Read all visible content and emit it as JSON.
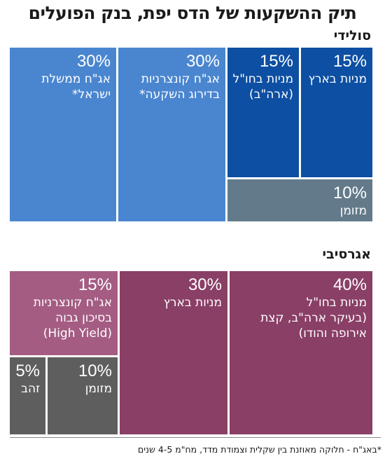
{
  "title": "תיק ההשקעות של הדס יפת, בנק הפועלים",
  "footnote": "*באג\"ח - חלוקה מאוזנת בין שקלית וצמודת מדד, מח\"מ 4-5 שנים",
  "colors": {
    "solid_light": "#4a86d0",
    "solid_dark": "#0d4fa3",
    "solid_cash": "#637a8a",
    "aggr_light": "#a45c82",
    "aggr_dark": "#8a3f66",
    "aggr_gray": "#5e5e5e"
  },
  "chart_data": [
    {
      "type": "treemap",
      "name": "סולידי",
      "items": [
        {
          "value": 30,
          "pct_label": "30%",
          "label": "אג\"ח ממשלת\nישראל*"
        },
        {
          "value": 30,
          "pct_label": "30%",
          "label": "אג\"ח קונצרניות\nבדירוג השקעה*"
        },
        {
          "value": 15,
          "pct_label": "15%",
          "label": "מניות בחו\"ל\n(ארה\"ב)"
        },
        {
          "value": 15,
          "pct_label": "15%",
          "label": "מניות בארץ"
        },
        {
          "value": 10,
          "pct_label": "10%",
          "label": "מזומן"
        }
      ]
    },
    {
      "type": "treemap",
      "name": "אגרסיבי",
      "items": [
        {
          "value": 15,
          "pct_label": "15%",
          "label": "אג\"ח קונצרניות\nבסיכון גבוה\n(High Yield)"
        },
        {
          "value": 30,
          "pct_label": "30%",
          "label": "מניות בארץ"
        },
        {
          "value": 40,
          "pct_label": "40%",
          "label": "מניות בחו\"ל\n(בעיקר ארה\"ב, קצת\nאירופה והודו)"
        },
        {
          "value": 5,
          "pct_label": "5%",
          "label": "זהב"
        },
        {
          "value": 10,
          "pct_label": "10%",
          "label": "מזומן"
        }
      ]
    }
  ]
}
